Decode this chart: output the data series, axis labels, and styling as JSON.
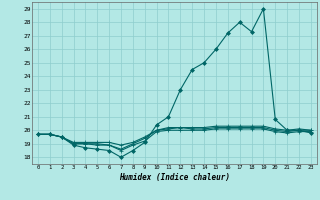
{
  "title": "",
  "xlabel": "Humidex (Indice chaleur)",
  "ylabel": "",
  "bg_color": "#b3e8e5",
  "grid_color": "#8ecece",
  "line_color": "#006666",
  "xlim": [
    -0.5,
    23.5
  ],
  "ylim": [
    17.5,
    29.5
  ],
  "yticks": [
    18,
    19,
    20,
    21,
    22,
    23,
    24,
    25,
    26,
    27,
    28,
    29
  ],
  "xticks": [
    0,
    1,
    2,
    3,
    4,
    5,
    6,
    7,
    8,
    9,
    10,
    11,
    12,
    13,
    14,
    15,
    16,
    17,
    18,
    19,
    20,
    21,
    22,
    23
  ],
  "lines": [
    [
      19.7,
      19.7,
      19.5,
      18.9,
      18.7,
      18.6,
      18.5,
      18.0,
      18.5,
      19.1,
      20.4,
      21.0,
      23.0,
      24.5,
      25.0,
      26.0,
      27.2,
      28.0,
      27.3,
      29.0,
      20.8,
      20.0,
      20.0,
      19.8
    ],
    [
      19.7,
      19.7,
      19.5,
      19.0,
      19.0,
      19.0,
      18.9,
      18.6,
      19.0,
      19.4,
      20.0,
      20.1,
      20.2,
      20.1,
      20.1,
      20.2,
      20.2,
      20.2,
      20.2,
      20.2,
      20.0,
      19.9,
      20.0,
      20.0
    ],
    [
      19.7,
      19.7,
      19.5,
      19.0,
      19.0,
      18.9,
      18.9,
      18.5,
      18.9,
      19.2,
      19.9,
      20.0,
      20.0,
      20.0,
      20.0,
      20.1,
      20.1,
      20.1,
      20.1,
      20.1,
      19.9,
      19.8,
      19.9,
      19.9
    ],
    [
      19.7,
      19.7,
      19.5,
      19.1,
      19.1,
      19.1,
      19.1,
      18.9,
      19.1,
      19.5,
      20.0,
      20.2,
      20.2,
      20.2,
      20.2,
      20.3,
      20.3,
      20.3,
      20.3,
      20.3,
      20.1,
      20.0,
      20.1,
      20.0
    ]
  ],
  "markers": [
    "D",
    "+",
    "+",
    "+"
  ],
  "markersizes": [
    2.0,
    2.5,
    2.5,
    2.5
  ],
  "linewidths": [
    0.8,
    0.8,
    0.8,
    0.8
  ]
}
